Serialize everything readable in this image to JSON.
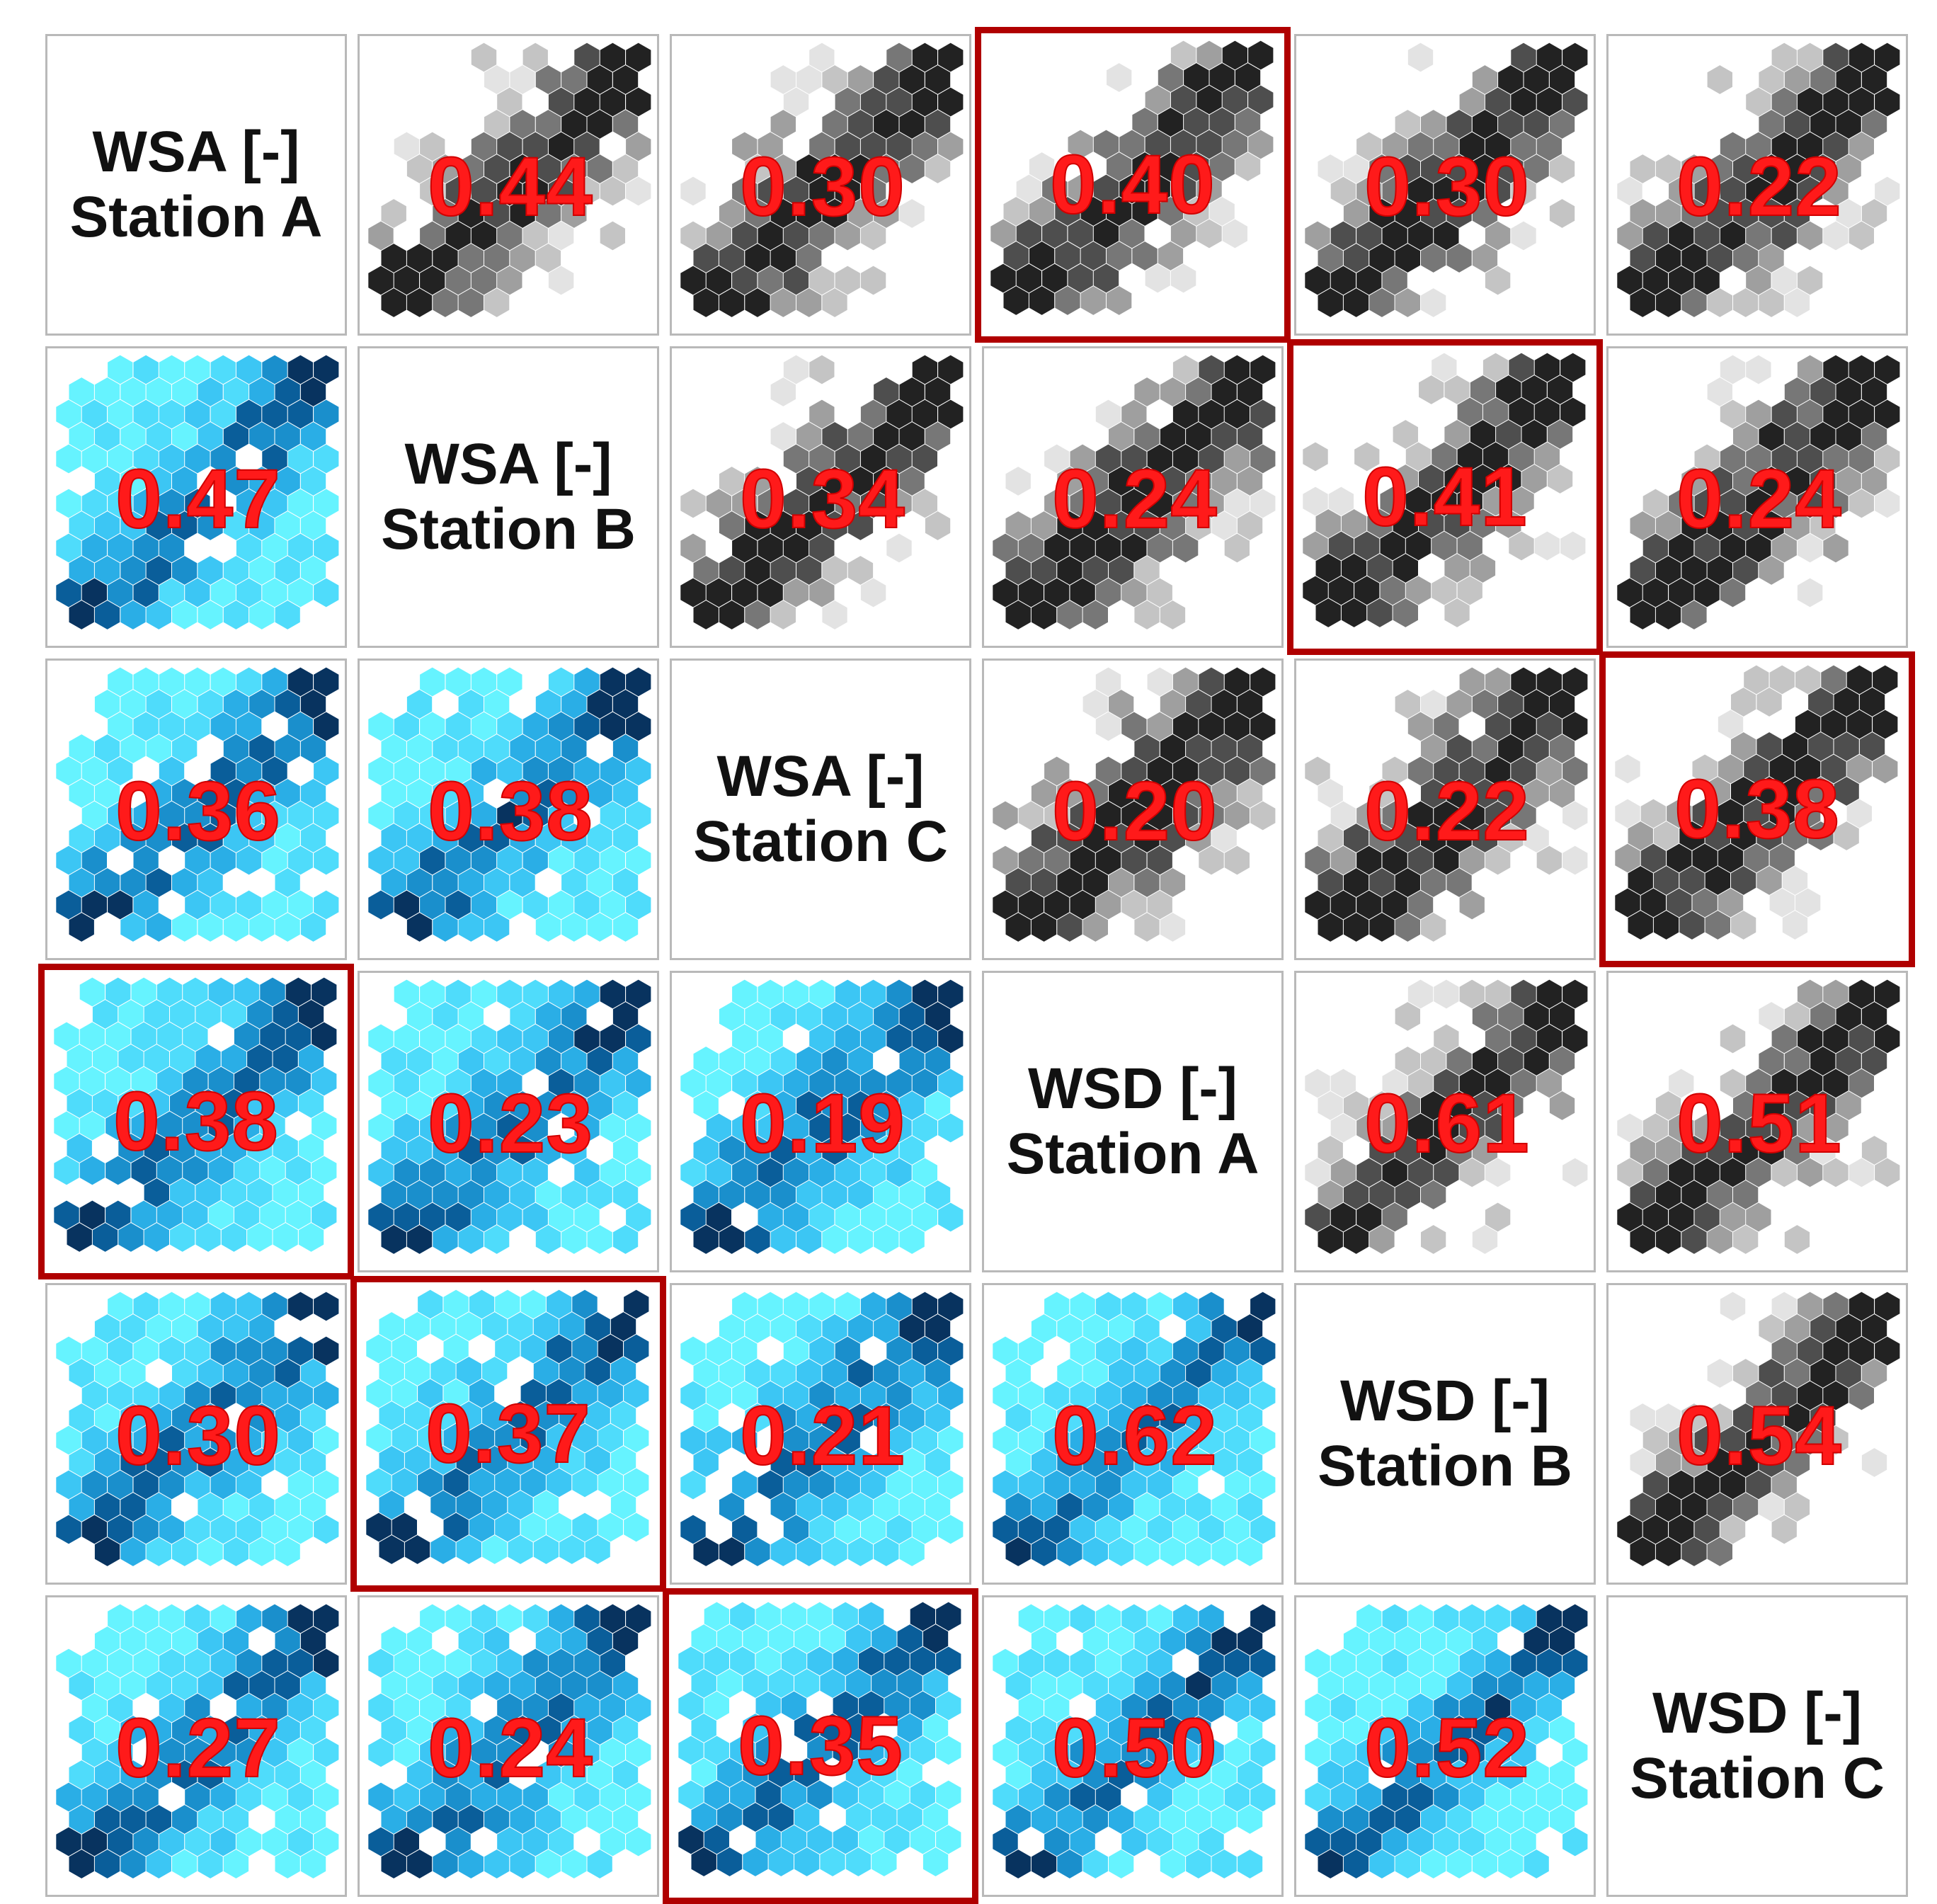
{
  "chart_data": {
    "type": "heatmap",
    "description_kind": "correlation-matrix-with-hexbin-scatter-panels",
    "variables": [
      {
        "line1": "WSA [-]",
        "line2": "Station A"
      },
      {
        "line1": "WSA [-]",
        "line2": "Station B"
      },
      {
        "line1": "WSA [-]",
        "line2": "Station C"
      },
      {
        "line1": "WSD [-]",
        "line2": "Station A"
      },
      {
        "line1": "WSD [-]",
        "line2": "Station B"
      },
      {
        "line1": "WSD [-]",
        "line2": "Station C"
      }
    ],
    "matrix": [
      [
        null,
        "0.44",
        "0.30",
        "0.40",
        "0.30",
        "0.22"
      ],
      [
        "0.47",
        null,
        "0.34",
        "0.24",
        "0.41",
        "0.24"
      ],
      [
        "0.36",
        "0.38",
        null,
        "0.20",
        "0.22",
        "0.38"
      ],
      [
        "0.38",
        "0.23",
        "0.19",
        null,
        "0.61",
        "0.51"
      ],
      [
        "0.30",
        "0.37",
        "0.21",
        "0.62",
        null,
        "0.54"
      ],
      [
        "0.27",
        "0.24",
        "0.35",
        "0.50",
        "0.52",
        null
      ]
    ],
    "highlighted_cells": [
      [
        0,
        3
      ],
      [
        1,
        4
      ],
      [
        2,
        5
      ],
      [
        3,
        0
      ],
      [
        4,
        1
      ],
      [
        5,
        2
      ]
    ],
    "colors": {
      "upper_triangle_palette": [
        "#e3e3e3",
        "#c4c4c4",
        "#9f9f9f",
        "#777777",
        "#4e4e4e",
        "#222222"
      ],
      "lower_triangle_palette": [
        "#66f3ff",
        "#4fdcfb",
        "#3cc6f4",
        "#2aaee6",
        "#1a8fcc",
        "#0a5e9a",
        "#08335f"
      ],
      "coefficient_text": "#ff1a1a",
      "highlight_border": "#b00000",
      "cell_border": "#b9b9b9"
    }
  }
}
